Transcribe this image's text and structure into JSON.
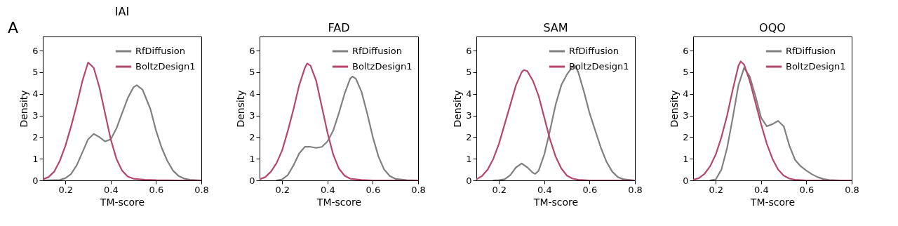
{
  "chart_data": [
    {
      "type": "line",
      "title": "IAI",
      "xlabel": "TM-score",
      "ylabel": "Density",
      "annotations": [
        "A"
      ],
      "xlim": [
        0.1,
        0.8
      ],
      "ylim": [
        0,
        6.65
      ],
      "xticks": [
        0.2,
        0.4,
        0.6,
        0.8
      ],
      "yticks": [
        0,
        1,
        2,
        3,
        4,
        5,
        6
      ],
      "grid": false,
      "legend": "top right",
      "series": [
        {
          "name": "RfDiffusion",
          "color": "#808080",
          "x": [
            0.1,
            0.175,
            0.2,
            0.225,
            0.25,
            0.275,
            0.3,
            0.325,
            0.35,
            0.375,
            0.4,
            0.425,
            0.45,
            0.475,
            0.5,
            0.515,
            0.54,
            0.575,
            0.6,
            0.625,
            0.65,
            0.675,
            0.7,
            0.725,
            0.75,
            0.8
          ],
          "values": [
            0,
            0.02,
            0.1,
            0.3,
            0.7,
            1.3,
            1.9,
            2.15,
            2.0,
            1.8,
            1.9,
            2.4,
            3.1,
            3.8,
            4.3,
            4.4,
            4.2,
            3.3,
            2.3,
            1.5,
            0.9,
            0.45,
            0.2,
            0.08,
            0.03,
            0
          ]
        },
        {
          "name": "BoltzDesign1",
          "color": "#b5466e",
          "x": [
            0.1,
            0.125,
            0.15,
            0.175,
            0.2,
            0.225,
            0.25,
            0.275,
            0.3,
            0.325,
            0.35,
            0.375,
            0.4,
            0.425,
            0.45,
            0.475,
            0.5,
            0.55,
            0.6,
            0.7,
            0.8
          ],
          "values": [
            0.05,
            0.15,
            0.4,
            0.9,
            1.6,
            2.5,
            3.5,
            4.6,
            5.45,
            5.2,
            4.3,
            3.1,
            1.9,
            1.0,
            0.45,
            0.18,
            0.08,
            0.03,
            0.01,
            0,
            0
          ]
        }
      ]
    },
    {
      "type": "line",
      "title": "FAD",
      "xlabel": "TM-score",
      "ylabel": "Density",
      "xlim": [
        0.1,
        0.8
      ],
      "ylim": [
        0,
        6.65
      ],
      "xticks": [
        0.2,
        0.4,
        0.6,
        0.8
      ],
      "yticks": [
        0,
        1,
        2,
        3,
        4,
        5,
        6
      ],
      "grid": false,
      "legend": "top right",
      "series": [
        {
          "name": "RfDiffusion",
          "color": "#808080",
          "x": [
            0.175,
            0.2,
            0.225,
            0.25,
            0.275,
            0.3,
            0.325,
            0.35,
            0.375,
            0.4,
            0.425,
            0.45,
            0.475,
            0.5,
            0.51,
            0.525,
            0.55,
            0.575,
            0.6,
            0.625,
            0.65,
            0.675,
            0.7,
            0.75,
            0.8
          ],
          "values": [
            0,
            0.05,
            0.25,
            0.7,
            1.25,
            1.55,
            1.55,
            1.5,
            1.55,
            1.8,
            2.3,
            3.1,
            4.0,
            4.7,
            4.8,
            4.7,
            4.1,
            3.1,
            2.0,
            1.1,
            0.5,
            0.2,
            0.07,
            0.01,
            0
          ]
        },
        {
          "name": "BoltzDesign1",
          "color": "#b5466e",
          "x": [
            0.1,
            0.125,
            0.15,
            0.175,
            0.2,
            0.225,
            0.25,
            0.275,
            0.3,
            0.31,
            0.325,
            0.35,
            0.375,
            0.4,
            0.425,
            0.45,
            0.475,
            0.5,
            0.55,
            0.6,
            0.8
          ],
          "values": [
            0.05,
            0.15,
            0.4,
            0.8,
            1.4,
            2.3,
            3.3,
            4.4,
            5.2,
            5.4,
            5.3,
            4.6,
            3.4,
            2.2,
            1.2,
            0.55,
            0.22,
            0.08,
            0.02,
            0,
            0
          ]
        }
      ]
    },
    {
      "type": "line",
      "title": "SAM",
      "xlabel": "TM-score",
      "ylabel": "Density",
      "xlim": [
        0.1,
        0.8
      ],
      "ylim": [
        0,
        6.65
      ],
      "xticks": [
        0.2,
        0.4,
        0.6,
        0.8
      ],
      "yticks": [
        0,
        1,
        2,
        3,
        4,
        5,
        6
      ],
      "grid": false,
      "legend": "top right",
      "series": [
        {
          "name": "RfDiffusion",
          "color": "#808080",
          "x": [
            0.175,
            0.2,
            0.225,
            0.25,
            0.275,
            0.3,
            0.325,
            0.35,
            0.36,
            0.375,
            0.4,
            0.425,
            0.45,
            0.475,
            0.5,
            0.525,
            0.535,
            0.55,
            0.575,
            0.6,
            0.625,
            0.65,
            0.675,
            0.7,
            0.725,
            0.75,
            0.8
          ],
          "values": [
            0,
            0.01,
            0.05,
            0.25,
            0.6,
            0.78,
            0.6,
            0.35,
            0.3,
            0.45,
            1.2,
            2.3,
            3.5,
            4.4,
            4.9,
            5.25,
            5.3,
            5.0,
            4.1,
            3.1,
            2.3,
            1.5,
            0.85,
            0.4,
            0.15,
            0.05,
            0
          ]
        },
        {
          "name": "BoltzDesign1",
          "color": "#b5466e",
          "x": [
            0.1,
            0.125,
            0.15,
            0.175,
            0.2,
            0.225,
            0.25,
            0.275,
            0.3,
            0.31,
            0.325,
            0.35,
            0.375,
            0.4,
            0.425,
            0.45,
            0.475,
            0.5,
            0.525,
            0.55,
            0.6,
            0.8
          ],
          "values": [
            0.05,
            0.2,
            0.5,
            1.0,
            1.7,
            2.6,
            3.5,
            4.4,
            5.0,
            5.1,
            5.05,
            4.6,
            3.9,
            2.9,
            1.9,
            1.1,
            0.55,
            0.22,
            0.08,
            0.03,
            0,
            0
          ]
        }
      ]
    },
    {
      "type": "line",
      "title": "OQO",
      "xlabel": "TM-score",
      "ylabel": "Density",
      "xlim": [
        0.1,
        0.8
      ],
      "ylim": [
        0,
        6.65
      ],
      "xticks": [
        0.2,
        0.4,
        0.6,
        0.8
      ],
      "yticks": [
        0,
        1,
        2,
        3,
        4,
        5,
        6
      ],
      "grid": false,
      "legend": "top right",
      "series": [
        {
          "name": "RfDiffusion",
          "color": "#808080",
          "x": [
            0.175,
            0.2,
            0.225,
            0.25,
            0.275,
            0.3,
            0.325,
            0.35,
            0.375,
            0.4,
            0.425,
            0.45,
            0.475,
            0.5,
            0.525,
            0.55,
            0.575,
            0.6,
            0.625,
            0.65,
            0.675,
            0.7,
            0.75,
            0.8
          ],
          "values": [
            0,
            0.05,
            0.5,
            1.5,
            2.9,
            4.4,
            5.2,
            4.8,
            3.9,
            2.9,
            2.5,
            2.6,
            2.75,
            2.5,
            1.6,
            0.95,
            0.65,
            0.45,
            0.28,
            0.15,
            0.06,
            0.02,
            0,
            0
          ]
        },
        {
          "name": "BoltzDesign1",
          "color": "#b5466e",
          "x": [
            0.1,
            0.125,
            0.15,
            0.175,
            0.2,
            0.225,
            0.25,
            0.275,
            0.3,
            0.31,
            0.325,
            0.35,
            0.375,
            0.4,
            0.425,
            0.45,
            0.475,
            0.5,
            0.525,
            0.55,
            0.6,
            0.8
          ],
          "values": [
            0.03,
            0.1,
            0.3,
            0.65,
            1.2,
            2.0,
            3.0,
            4.2,
            5.3,
            5.5,
            5.35,
            4.6,
            3.6,
            2.6,
            1.7,
            1.0,
            0.5,
            0.22,
            0.08,
            0.03,
            0,
            0
          ]
        }
      ]
    }
  ]
}
